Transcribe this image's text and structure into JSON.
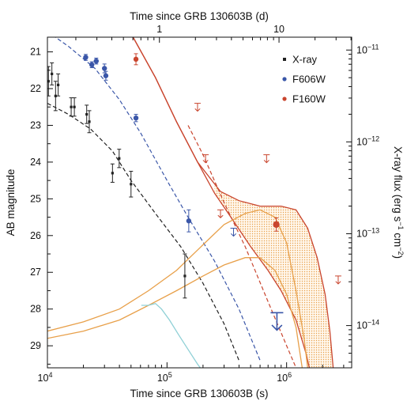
{
  "chart_data": {
    "type": "scatter",
    "title": "",
    "xlabel_bottom": "Time since GRB 130603B (s)",
    "xlabel_top": "Time since GRB 130603B (d)",
    "ylabel_left": "AB magnitude",
    "ylabel_right_prefix": "X-ray flux (erg s",
    "ylabel_right_mid": " cm",
    "ylabel_right_suffix": ")",
    "ylabel_right_sup1": "−1",
    "ylabel_right_sup2": "−2",
    "x_scale": "log",
    "xlim": [
      10000,
      3500000
    ],
    "x_ticks_bottom": [
      {
        "value": 10000,
        "base": "10",
        "exp": "4"
      },
      {
        "value": 100000,
        "base": "10",
        "exp": "5"
      },
      {
        "value": 1000000,
        "base": "10",
        "exp": "6"
      }
    ],
    "x_ticks_top_days": [
      {
        "days": 1,
        "label": "1"
      },
      {
        "days": 10,
        "label": "10"
      }
    ],
    "ylim_mag": [
      29.6,
      20.6
    ],
    "y_ticks_mag": [
      21,
      22,
      23,
      24,
      25,
      26,
      27,
      28,
      29
    ],
    "y_right_scale": "log",
    "y_ticks_flux": [
      {
        "value": 1e-11,
        "base": "10",
        "exp": "−11"
      },
      {
        "value": 1e-12,
        "base": "10",
        "exp": "−12"
      },
      {
        "value": 1e-13,
        "base": "10",
        "exp": "−13"
      },
      {
        "value": 1e-14,
        "base": "10",
        "exp": "−14"
      }
    ],
    "colors": {
      "xray": "#222222",
      "f606w": "#3a56a8",
      "f160w": "#c9452e",
      "orange": "#e8a04a",
      "cyan": "#8fd0d6"
    },
    "legend": {
      "placement": "top-right",
      "entries": [
        {
          "label": "X-ray",
          "marker": "square",
          "color": "#222222"
        },
        {
          "label": "F606W",
          "marker": "circle",
          "color": "#3a56a8"
        },
        {
          "label": "F160W",
          "marker": "circle",
          "color": "#c9452e"
        }
      ]
    },
    "series": [
      {
        "name": "X-ray",
        "points": [
          {
            "t": 10200,
            "mag": 21.8,
            "err": 0.4
          },
          {
            "t": 10900,
            "mag": 21.6,
            "err": 0.3
          },
          {
            "t": 11700,
            "mag": 22.2,
            "err": 0.4
          },
          {
            "t": 12300,
            "mag": 21.9,
            "err": 0.3
          },
          {
            "t": 15800,
            "mag": 22.5,
            "err": 0.25
          },
          {
            "t": 16800,
            "mag": 22.5,
            "err": 0.25
          },
          {
            "t": 21300,
            "mag": 22.7,
            "err": 0.25
          },
          {
            "t": 22400,
            "mag": 22.9,
            "err": 0.3
          },
          {
            "t": 35000,
            "mag": 24.3,
            "err": 0.25
          },
          {
            "t": 39800,
            "mag": 23.9,
            "err": 0.25
          },
          {
            "t": 50000,
            "mag": 24.6,
            "err": 0.35
          },
          {
            "t": 141000,
            "mag": 27.1,
            "err": 0.6
          }
        ]
      },
      {
        "name": "F606W",
        "points": [
          {
            "t": 20900,
            "mag": 21.15,
            "err": 0.08
          },
          {
            "t": 23500,
            "mag": 21.35,
            "err": 0.08
          },
          {
            "t": 25600,
            "mag": 21.25,
            "err": 0.08
          },
          {
            "t": 30000,
            "mag": 21.45,
            "err": 0.12
          },
          {
            "t": 30800,
            "mag": 21.65,
            "err": 0.12
          },
          {
            "t": 55000,
            "mag": 22.8,
            "err": 0.1
          },
          {
            "t": 152000,
            "mag": 25.6,
            "err": 0.3
          }
        ],
        "upper_limits": [
          {
            "t": 360000,
            "mag": 25.8
          },
          {
            "t": 830000,
            "mag": 28.1
          }
        ]
      },
      {
        "name": "F160W",
        "points": [
          {
            "t": 55000,
            "mag": 21.2,
            "err": 0.15
          },
          {
            "t": 820000,
            "mag": 25.7,
            "err": 0.18
          }
        ],
        "upper_limits": [
          {
            "t": 180000,
            "mag": 22.4
          },
          {
            "t": 210000,
            "mag": 23.8
          },
          {
            "t": 280000,
            "mag": 25.3
          },
          {
            "t": 680000,
            "mag": 23.8
          },
          {
            "t": 2700000,
            "mag": 27.1
          }
        ]
      }
    ],
    "models": [
      {
        "name": "xray_model_dash",
        "style": "dashed",
        "color": "#222222",
        "points": [
          [
            10000,
            22.4
          ],
          [
            15000,
            22.7
          ],
          [
            23000,
            23.1
          ],
          [
            35000,
            23.7
          ],
          [
            50000,
            24.5
          ],
          [
            80000,
            25.4
          ],
          [
            130000,
            26.3
          ],
          [
            200000,
            27.3
          ],
          [
            300000,
            28.4
          ],
          [
            400000,
            29.4
          ]
        ]
      },
      {
        "name": "f606w_model_dash",
        "style": "dashed",
        "color": "#3a56a8",
        "points": [
          [
            10000,
            20.45
          ],
          [
            15000,
            20.85
          ],
          [
            25000,
            21.45
          ],
          [
            40000,
            22.3
          ],
          [
            60000,
            23.2
          ],
          [
            100000,
            24.5
          ],
          [
            150000,
            25.5
          ],
          [
            250000,
            26.7
          ],
          [
            400000,
            28.0
          ],
          [
            600000,
            29.4
          ]
        ]
      },
      {
        "name": "f160w_model_dash",
        "style": "dashed",
        "color": "#c9452e",
        "points": [
          [
            150000,
            23.0
          ],
          [
            200000,
            23.8
          ],
          [
            300000,
            25.1
          ],
          [
            450000,
            26.3
          ],
          [
            700000,
            27.8
          ],
          [
            1000000,
            29.0
          ],
          [
            1200000,
            29.6
          ]
        ]
      },
      {
        "name": "f160w_afterglow_upper",
        "style": "solid",
        "color": "#c9452e",
        "points": [
          [
            52000,
            20.6
          ],
          [
            80000,
            21.7
          ],
          [
            120000,
            22.9
          ],
          [
            180000,
            24.0
          ],
          [
            280000,
            24.8
          ],
          [
            400000,
            25.05
          ],
          [
            600000,
            25.2
          ],
          [
            900000,
            25.2
          ],
          [
            1200000,
            25.3
          ],
          [
            1500000,
            25.8
          ],
          [
            1800000,
            26.6
          ],
          [
            2100000,
            27.6
          ],
          [
            2300000,
            28.6
          ],
          [
            2450000,
            29.6
          ]
        ]
      },
      {
        "name": "f160w_afterglow_lower",
        "style": "solid",
        "color": "#c9452e",
        "points": [
          [
            52000,
            20.6
          ],
          [
            80000,
            21.7
          ],
          [
            120000,
            22.9
          ],
          [
            180000,
            24.0
          ],
          [
            250000,
            24.85
          ],
          [
            350000,
            25.55
          ],
          [
            500000,
            26.3
          ],
          [
            700000,
            26.95
          ],
          [
            900000,
            27.5
          ],
          [
            1200000,
            28.3
          ],
          [
            1450000,
            29.2
          ],
          [
            1550000,
            29.6
          ]
        ]
      },
      {
        "name": "kilonova_upper",
        "style": "solid",
        "color": "#e8a04a",
        "points": [
          [
            10000,
            28.6
          ],
          [
            20000,
            28.35
          ],
          [
            40000,
            28.0
          ],
          [
            70000,
            27.5
          ],
          [
            120000,
            26.95
          ],
          [
            200000,
            26.25
          ],
          [
            300000,
            25.7
          ],
          [
            450000,
            25.4
          ],
          [
            600000,
            25.3
          ],
          [
            800000,
            25.5
          ],
          [
            1000000,
            26.2
          ],
          [
            1200000,
            27.5
          ],
          [
            1400000,
            28.8
          ],
          [
            1500000,
            29.6
          ]
        ]
      },
      {
        "name": "kilonova_lower",
        "style": "solid",
        "color": "#e8a04a",
        "points": [
          [
            10000,
            28.8
          ],
          [
            20000,
            28.6
          ],
          [
            40000,
            28.3
          ],
          [
            70000,
            27.9
          ],
          [
            120000,
            27.5
          ],
          [
            200000,
            27.1
          ],
          [
            300000,
            26.8
          ],
          [
            450000,
            26.6
          ],
          [
            600000,
            26.6
          ],
          [
            800000,
            26.95
          ],
          [
            1000000,
            27.6
          ],
          [
            1200000,
            28.5
          ],
          [
            1350000,
            29.6
          ]
        ]
      },
      {
        "name": "cyan_model",
        "style": "solid",
        "color": "#8fd0d6",
        "points": [
          [
            61000,
            27.9
          ],
          [
            70000,
            27.9
          ],
          [
            80000,
            27.85
          ],
          [
            90000,
            28.0
          ],
          [
            105000,
            28.3
          ],
          [
            125000,
            28.7
          ],
          [
            150000,
            29.1
          ],
          [
            180000,
            29.5
          ],
          [
            200000,
            29.7
          ]
        ]
      }
    ],
    "shaded_region": {
      "color": "#e8a04a",
      "upper_model": "f160w_afterglow_upper",
      "lower_model": "f160w_afterglow_lower",
      "t_min": 250000,
      "t_max": 2450000
    }
  }
}
